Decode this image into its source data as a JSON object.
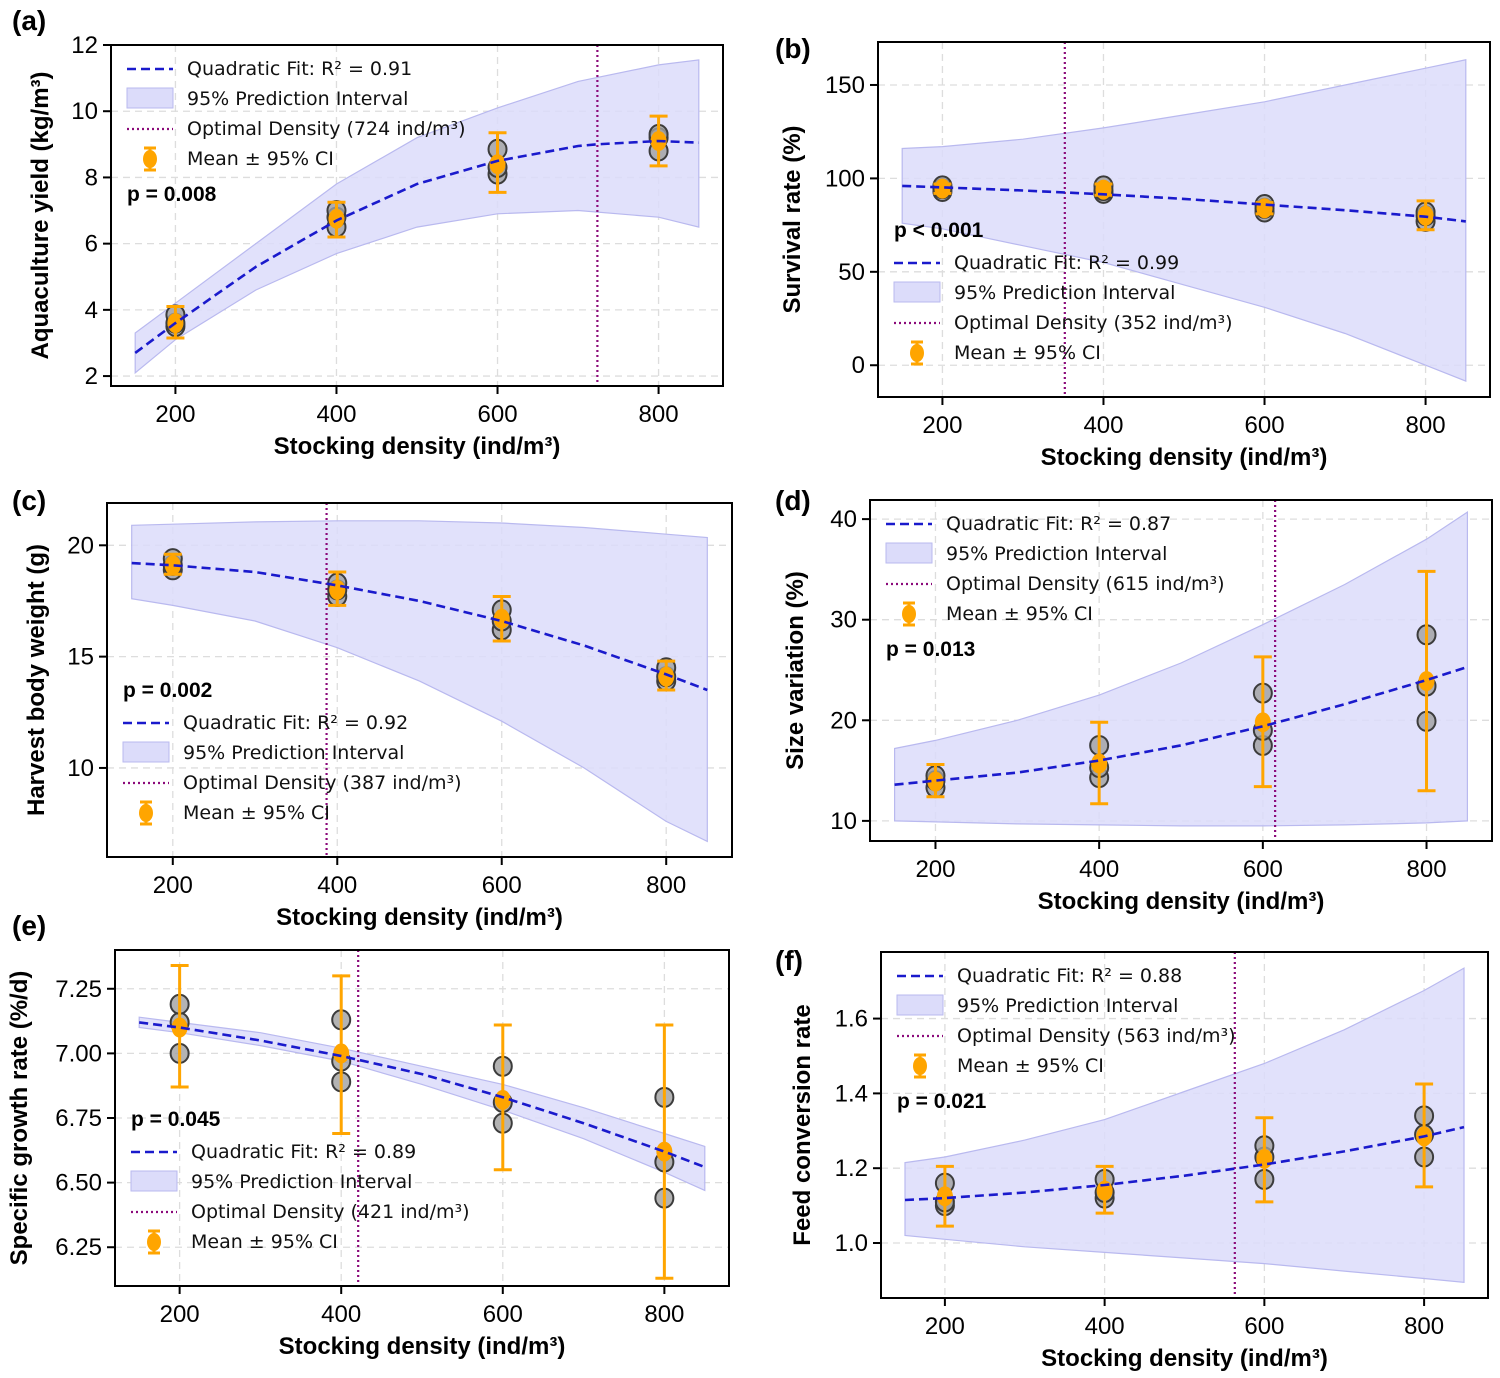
{
  "figure": {
    "colors": {
      "fit_line": "#1a1acc",
      "band_fill": "#dcdcfa",
      "band_edge": "#b9b9ef",
      "optimal_line": "#8b0a7a",
      "mean_marker": "#ffa500",
      "raw_point_fill": "#a0a0a0",
      "raw_point_edge": "#3c3c3c",
      "grid": "#dddddd"
    }
  },
  "chart_data": [
    {
      "id": "a",
      "panel_label": "(a)",
      "type": "scatter",
      "title": "",
      "xlabel": "Stocking density (ind/m³)",
      "ylabel": "Aquaculture yield (kg/m³)",
      "xlim": [
        120,
        880
      ],
      "ylim": [
        1.7,
        12
      ],
      "xticks": [
        200,
        400,
        600,
        800
      ],
      "yticks": [
        2,
        4,
        6,
        8,
        10,
        12
      ],
      "ytick_labels": [
        "2",
        "4",
        "6",
        "8",
        "10",
        "12"
      ],
      "grid": true,
      "p_value_text": "p = 0.008",
      "p_position": "upper-left",
      "legend_position": "top-left",
      "legend": {
        "fit": "Quadratic Fit: R² = 0.91",
        "band": "95% Prediction Interval",
        "optimal": "Optimal Density (724 ind/m³)",
        "mean": "Mean ± 95% CI"
      },
      "optimal_density": 724,
      "fit": {
        "x": [
          150,
          200,
          300,
          400,
          500,
          600,
          700,
          724,
          800,
          850
        ],
        "y": [
          2.7,
          3.6,
          5.3,
          6.7,
          7.8,
          8.5,
          8.95,
          9.0,
          9.1,
          9.05
        ]
      },
      "band": {
        "x": [
          150,
          200,
          300,
          400,
          500,
          600,
          700,
          800,
          850
        ],
        "lower": [
          2.1,
          3.1,
          4.6,
          5.7,
          6.5,
          6.9,
          7.0,
          6.8,
          6.5
        ],
        "upper": [
          3.3,
          4.2,
          6.0,
          7.8,
          9.2,
          10.1,
          10.9,
          11.4,
          11.55
        ]
      },
      "raw_points": {
        "x": [
          200,
          200,
          200,
          400,
          400,
          400,
          600,
          600,
          600,
          800,
          800,
          800
        ],
        "y": [
          3.5,
          3.6,
          3.85,
          6.5,
          6.8,
          7.0,
          8.1,
          8.3,
          8.85,
          8.8,
          9.2,
          9.3
        ]
      },
      "means": {
        "x": [
          200,
          400,
          600,
          800
        ],
        "y": [
          3.6,
          6.75,
          8.4,
          9.1
        ],
        "ci_low": [
          3.15,
          6.2,
          7.55,
          8.35
        ],
        "ci_high": [
          4.1,
          7.25,
          9.35,
          9.85
        ]
      }
    },
    {
      "id": "b",
      "panel_label": "(b)",
      "type": "scatter",
      "title": "",
      "xlabel": "Stocking density (ind/m³)",
      "ylabel": "Survival rate (%)",
      "xlim": [
        120,
        880
      ],
      "ylim": [
        -17,
        173
      ],
      "xticks": [
        200,
        400,
        600,
        800
      ],
      "yticks": [
        0,
        50,
        100,
        150
      ],
      "ytick_labels": [
        "0",
        "50",
        "100",
        "150"
      ],
      "grid": true,
      "p_value_text": "p < 0.001",
      "p_position": "lower-left",
      "legend_position": "lower-left",
      "legend": {
        "fit": "Quadratic Fit: R² = 0.99",
        "band": "95% Prediction Interval",
        "optimal": "Optimal Density (352 ind/m³)",
        "mean": "Mean ± 95% CI"
      },
      "optimal_density": 352,
      "fit": {
        "x": [
          150,
          200,
          300,
          400,
          500,
          600,
          700,
          800,
          850
        ],
        "y": [
          96,
          95.2,
          93.5,
          91.5,
          89,
          86,
          83,
          79.5,
          77
        ]
      },
      "band": {
        "x": [
          150,
          200,
          300,
          400,
          500,
          600,
          700,
          800,
          850
        ],
        "lower": [
          76,
          73,
          64,
          55,
          43,
          31,
          17,
          0,
          -8.5
        ],
        "upper": [
          116,
          117,
          121,
          127,
          134,
          141,
          150,
          159,
          163.5
        ]
      },
      "raw_points": {
        "x": [
          200,
          200,
          200,
          400,
          400,
          400,
          600,
          600,
          600,
          800,
          800,
          800
        ],
        "y": [
          93,
          94.5,
          96,
          92,
          93.5,
          96,
          82,
          84,
          86,
          77,
          80,
          82
        ]
      },
      "means": {
        "x": [
          200,
          400,
          600,
          800
        ],
        "y": [
          94.5,
          94,
          84,
          80
        ],
        "ci_low": [
          92,
          91,
          81,
          72.5
        ],
        "ci_high": [
          97,
          97,
          87,
          88
        ]
      }
    },
    {
      "id": "c",
      "panel_label": "(c)",
      "type": "scatter",
      "title": "",
      "xlabel": "Stocking density (ind/m³)",
      "ylabel": "Harvest body weight (g)",
      "xlim": [
        120,
        880
      ],
      "ylim": [
        6.0,
        21.9
      ],
      "xticks": [
        200,
        400,
        600,
        800
      ],
      "yticks": [
        10,
        15,
        20
      ],
      "ytick_labels": [
        "10",
        "15",
        "20"
      ],
      "grid": true,
      "p_value_text": "p = 0.002",
      "p_position": "lower-left",
      "legend_position": "lower-left",
      "legend": {
        "fit": "Quadratic Fit: R² = 0.92",
        "band": "95% Prediction Interval",
        "optimal": "Optimal Density (387 ind/m³)",
        "mean": "Mean ± 95% CI"
      },
      "optimal_density": 387,
      "fit": {
        "x": [
          150,
          200,
          300,
          400,
          500,
          600,
          700,
          800,
          850
        ],
        "y": [
          19.2,
          19.1,
          18.8,
          18.2,
          17.5,
          16.6,
          15.5,
          14.2,
          13.5
        ]
      },
      "band": {
        "x": [
          150,
          200,
          300,
          400,
          500,
          600,
          700,
          800,
          850
        ],
        "lower": [
          17.6,
          17.3,
          16.6,
          15.4,
          13.9,
          12.1,
          10.0,
          7.6,
          6.7
        ],
        "upper": [
          20.9,
          20.95,
          21.05,
          21.1,
          21.1,
          21.0,
          20.8,
          20.5,
          20.35
        ]
      },
      "raw_points": {
        "x": [
          200,
          200,
          200,
          400,
          400,
          400,
          600,
          600,
          600,
          800,
          800,
          800
        ],
        "y": [
          18.9,
          19.1,
          19.4,
          17.7,
          18.0,
          18.3,
          16.2,
          16.6,
          17.1,
          13.9,
          14.1,
          14.5
        ]
      },
      "means": {
        "x": [
          200,
          400,
          600,
          800
        ],
        "y": [
          19.1,
          18.0,
          16.7,
          14.1
        ],
        "ci_low": [
          18.7,
          17.3,
          15.7,
          13.5
        ],
        "ci_high": [
          19.6,
          18.8,
          17.7,
          14.8
        ]
      }
    },
    {
      "id": "d",
      "panel_label": "(d)",
      "type": "scatter",
      "title": "",
      "xlabel": "Stocking density (ind/m³)",
      "ylabel": "Size variation (%)",
      "xlim": [
        120,
        880
      ],
      "ylim": [
        8.0,
        41.9
      ],
      "xticks": [
        200,
        400,
        600,
        800
      ],
      "yticks": [
        10,
        20,
        30,
        40
      ],
      "ytick_labels": [
        "10",
        "20",
        "30",
        "40"
      ],
      "grid": true,
      "p_value_text": "p = 0.013",
      "p_position": "upper-left",
      "legend_position": "top-left",
      "legend": {
        "fit": "Quadratic Fit: R² = 0.87",
        "band": "95% Prediction Interval",
        "optimal": "Optimal Density (615 ind/m³)",
        "mean": "Mean ± 95% CI"
      },
      "optimal_density": 615,
      "fit": {
        "x": [
          150,
          200,
          300,
          400,
          500,
          600,
          700,
          800,
          850
        ],
        "y": [
          13.6,
          14.0,
          14.8,
          16.0,
          17.5,
          19.4,
          21.6,
          24.0,
          25.3
        ]
      },
      "band": {
        "x": [
          150,
          200,
          300,
          400,
          500,
          600,
          700,
          800,
          850
        ],
        "lower": [
          10.0,
          9.9,
          9.7,
          9.6,
          9.5,
          9.5,
          9.6,
          9.8,
          10.0
        ],
        "upper": [
          17.2,
          18.0,
          20.0,
          22.5,
          25.7,
          29.5,
          33.5,
          38.0,
          40.7
        ]
      },
      "raw_points": {
        "x": [
          200,
          200,
          200,
          400,
          400,
          400,
          600,
          600,
          600,
          800,
          800,
          800
        ],
        "y": [
          13.3,
          14.0,
          14.5,
          14.3,
          15.3,
          17.5,
          17.5,
          19.0,
          22.7,
          19.9,
          23.4,
          28.5
        ]
      },
      "means": {
        "x": [
          200,
          400,
          600,
          800
        ],
        "y": [
          13.9,
          15.7,
          19.8,
          23.9
        ],
        "ci_low": [
          12.4,
          11.7,
          13.4,
          13.0
        ],
        "ci_high": [
          15.6,
          19.8,
          26.3,
          34.8
        ]
      }
    },
    {
      "id": "e",
      "panel_label": "(e)",
      "type": "scatter",
      "title": "",
      "xlabel": "Stocking density (ind/m³)",
      "ylabel": "Specific growth rate (%/d)",
      "xlim": [
        120,
        880
      ],
      "ylim": [
        6.1,
        7.4
      ],
      "xticks": [
        200,
        400,
        600,
        800
      ],
      "yticks": [
        6.25,
        6.5,
        6.75,
        7.0,
        7.25
      ],
      "ytick_labels": [
        "6.25",
        "6.50",
        "6.75",
        "7.00",
        "7.25"
      ],
      "grid": true,
      "p_value_text": "p = 0.045",
      "p_position": "lower-left",
      "legend_position": "lower-left",
      "legend": {
        "fit": "Quadratic Fit: R² = 0.89",
        "band": "95% Prediction Interval",
        "optimal": "Optimal Density (421 ind/m³)",
        "mean": "Mean ± 95% CI"
      },
      "optimal_density": 421,
      "fit": {
        "x": [
          150,
          200,
          300,
          400,
          500,
          600,
          700,
          800,
          850
        ],
        "y": [
          7.12,
          7.1,
          7.05,
          6.99,
          6.92,
          6.83,
          6.73,
          6.62,
          6.56
        ]
      },
      "band": {
        "x": [
          150,
          200,
          300,
          400,
          500,
          600,
          700,
          800,
          850
        ],
        "lower": [
          7.1,
          7.08,
          7.03,
          6.97,
          6.88,
          6.78,
          6.67,
          6.54,
          6.47
        ],
        "upper": [
          7.14,
          7.12,
          7.08,
          7.02,
          6.95,
          6.88,
          6.79,
          6.69,
          6.64
        ]
      },
      "raw_points": {
        "x": [
          200,
          200,
          200,
          400,
          400,
          400,
          600,
          600,
          600,
          800,
          800,
          800
        ],
        "y": [
          7.0,
          7.12,
          7.19,
          6.89,
          6.97,
          7.13,
          6.73,
          6.81,
          6.95,
          6.44,
          6.58,
          6.83
        ]
      },
      "means": {
        "x": [
          200,
          400,
          600,
          800
        ],
        "y": [
          7.1,
          7.0,
          6.82,
          6.62
        ],
        "ci_low": [
          6.87,
          6.69,
          6.55,
          6.13
        ],
        "ci_high": [
          7.34,
          7.3,
          7.11,
          7.11
        ]
      }
    },
    {
      "id": "f",
      "panel_label": "(f)",
      "type": "scatter",
      "title": "",
      "xlabel": "Stocking density (ind/m³)",
      "ylabel": "Feed conversion rate",
      "xlim": [
        120,
        880
      ],
      "ylim": [
        0.853,
        1.778
      ],
      "xticks": [
        200,
        400,
        600,
        800
      ],
      "yticks": [
        1.0,
        1.2,
        1.4,
        1.6
      ],
      "ytick_labels": [
        "1.0",
        "1.2",
        "1.4",
        "1.6"
      ],
      "grid": true,
      "p_value_text": "p = 0.021",
      "p_position": "upper-left",
      "legend_position": "top-left",
      "legend": {
        "fit": "Quadratic Fit: R² = 0.88",
        "band": "95% Prediction Interval",
        "optimal": "Optimal Density (563 ind/m³)",
        "mean": "Mean ± 95% CI"
      },
      "optimal_density": 563,
      "fit": {
        "x": [
          150,
          200,
          300,
          400,
          500,
          600,
          700,
          800,
          850
        ],
        "y": [
          1.115,
          1.12,
          1.135,
          1.155,
          1.18,
          1.21,
          1.245,
          1.285,
          1.31
        ]
      },
      "band": {
        "x": [
          150,
          200,
          300,
          400,
          500,
          600,
          700,
          800,
          850
        ],
        "lower": [
          1.02,
          1.01,
          0.99,
          0.975,
          0.96,
          0.945,
          0.925,
          0.905,
          0.895
        ],
        "upper": [
          1.215,
          1.23,
          1.275,
          1.33,
          1.405,
          1.48,
          1.57,
          1.675,
          1.735
        ]
      },
      "raw_points": {
        "x": [
          200,
          200,
          200,
          400,
          400,
          400,
          600,
          600,
          600,
          800,
          800,
          800
        ],
        "y": [
          1.1,
          1.11,
          1.16,
          1.12,
          1.135,
          1.17,
          1.17,
          1.23,
          1.26,
          1.23,
          1.29,
          1.34
        ]
      },
      "means": {
        "x": [
          200,
          400,
          600,
          800
        ],
        "y": [
          1.125,
          1.14,
          1.225,
          1.285
        ],
        "ci_low": [
          1.045,
          1.08,
          1.11,
          1.15
        ],
        "ci_high": [
          1.205,
          1.205,
          1.335,
          1.425
        ]
      }
    }
  ]
}
